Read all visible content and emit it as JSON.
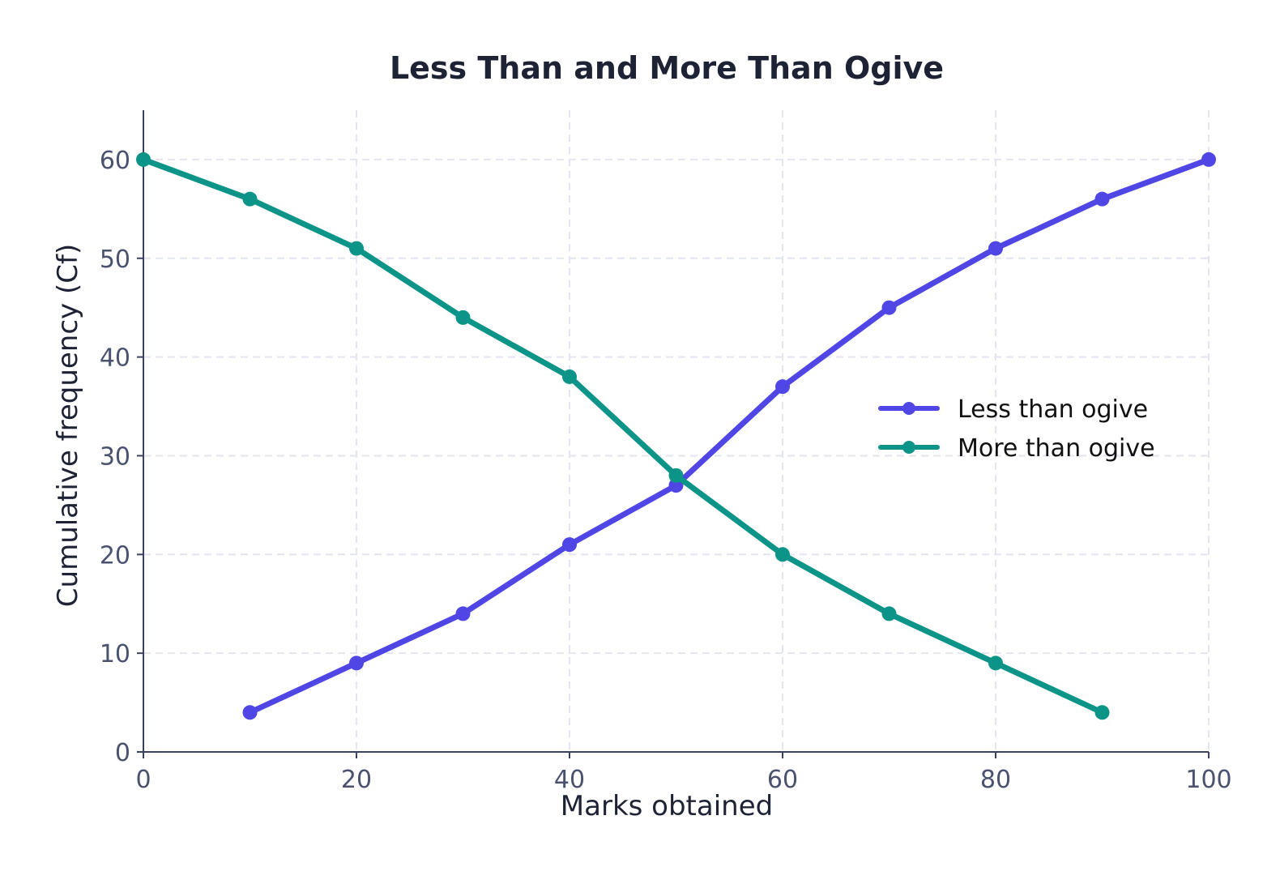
{
  "chart_data": {
    "type": "line",
    "title": "Less Than and More Than Ogive",
    "xlabel": "Marks obtained",
    "ylabel": "Cumulative frequency (Cf)",
    "xlim": [
      0,
      100
    ],
    "ylim": [
      0,
      65
    ],
    "xticks": [
      0,
      20,
      40,
      60,
      80,
      100
    ],
    "yticks": [
      0,
      10,
      20,
      30,
      40,
      50,
      60
    ],
    "grid": true,
    "legend_position": "center-right",
    "series": [
      {
        "name": "Less than ogive",
        "color": "#4f46e5",
        "x": [
          10,
          20,
          30,
          40,
          50,
          60,
          70,
          80,
          90,
          100
        ],
        "y": [
          4,
          9,
          14,
          21,
          27,
          37,
          45,
          51,
          56,
          60
        ]
      },
      {
        "name": "More than ogive",
        "color": "#0d9488",
        "x": [
          0,
          10,
          20,
          30,
          40,
          50,
          60,
          70,
          80,
          90
        ],
        "y": [
          60,
          56,
          51,
          44,
          38,
          28,
          20,
          14,
          9,
          4
        ]
      }
    ]
  }
}
